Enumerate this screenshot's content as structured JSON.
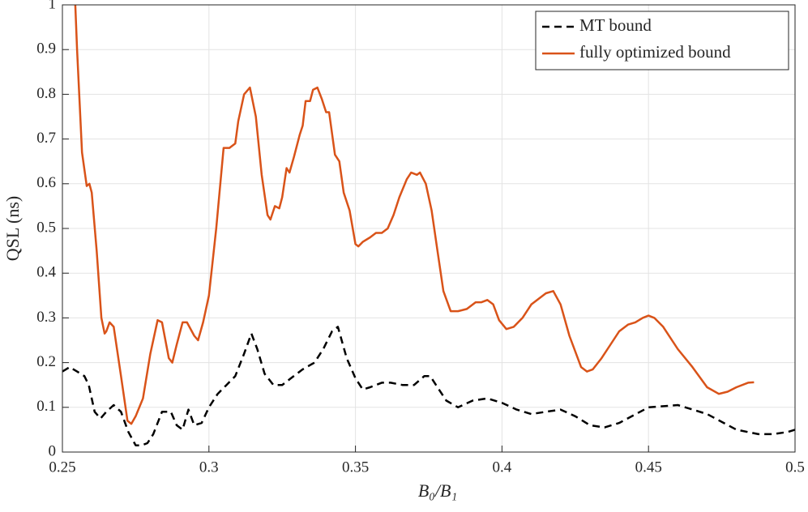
{
  "chart_data": {
    "type": "line",
    "xlabel": "B₀/B₁",
    "ylabel": "QSL (ns)",
    "xlim": [
      0.25,
      0.5
    ],
    "ylim": [
      0,
      1
    ],
    "xticks": [
      0.25,
      0.3,
      0.35,
      0.4,
      0.45,
      0.5
    ],
    "yticks": [
      0,
      0.1,
      0.2,
      0.3,
      0.4,
      0.5,
      0.6,
      0.7,
      0.8,
      0.9,
      1
    ],
    "grid": true,
    "legend": "upper right",
    "series": [
      {
        "name": "MT bound",
        "color": "#000000",
        "dashed": true,
        "x": [
          0.25,
          0.2525,
          0.255,
          0.2575,
          0.259,
          0.261,
          0.263,
          0.265,
          0.2675,
          0.27,
          0.2725,
          0.275,
          0.277,
          0.279,
          0.281,
          0.284,
          0.287,
          0.289,
          0.291,
          0.293,
          0.295,
          0.2975,
          0.3,
          0.303,
          0.306,
          0.309,
          0.312,
          0.3145,
          0.3165,
          0.319,
          0.322,
          0.325,
          0.328,
          0.332,
          0.336,
          0.339,
          0.342,
          0.344,
          0.347,
          0.35,
          0.3525,
          0.355,
          0.359,
          0.362,
          0.366,
          0.37,
          0.3735,
          0.3755,
          0.378,
          0.381,
          0.385,
          0.39,
          0.395,
          0.4,
          0.405,
          0.41,
          0.415,
          0.42,
          0.425,
          0.43,
          0.435,
          0.44,
          0.45,
          0.46,
          0.47,
          0.48,
          0.4875,
          0.4925,
          0.4975,
          0.5
        ],
        "values": [
          0.18,
          0.19,
          0.18,
          0.17,
          0.15,
          0.09,
          0.075,
          0.09,
          0.105,
          0.09,
          0.045,
          0.015,
          0.015,
          0.02,
          0.04,
          0.09,
          0.09,
          0.06,
          0.05,
          0.095,
          0.06,
          0.065,
          0.1,
          0.13,
          0.15,
          0.17,
          0.22,
          0.265,
          0.23,
          0.175,
          0.15,
          0.15,
          0.165,
          0.185,
          0.2,
          0.23,
          0.27,
          0.28,
          0.21,
          0.165,
          0.14,
          0.145,
          0.155,
          0.155,
          0.15,
          0.15,
          0.17,
          0.17,
          0.145,
          0.115,
          0.1,
          0.115,
          0.12,
          0.11,
          0.095,
          0.085,
          0.09,
          0.095,
          0.08,
          0.06,
          0.055,
          0.065,
          0.1,
          0.105,
          0.085,
          0.05,
          0.04,
          0.04,
          0.045,
          0.05
        ]
      },
      {
        "name": "fully optimized bound",
        "color": "#d95319",
        "dashed": false,
        "x": [
          0.2544,
          0.255,
          0.2567,
          0.2583,
          0.2592,
          0.26,
          0.2617,
          0.2633,
          0.2644,
          0.265,
          0.2661,
          0.2675,
          0.27,
          0.2722,
          0.2735,
          0.275,
          0.2775,
          0.28,
          0.2825,
          0.284,
          0.2863,
          0.2875,
          0.289,
          0.291,
          0.2925,
          0.295,
          0.2963,
          0.298,
          0.3,
          0.3025,
          0.305,
          0.307,
          0.309,
          0.31,
          0.312,
          0.314,
          0.316,
          0.318,
          0.32,
          0.321,
          0.3225,
          0.324,
          0.325,
          0.3265,
          0.3275,
          0.329,
          0.331,
          0.332,
          0.333,
          0.3345,
          0.3355,
          0.337,
          0.3385,
          0.34,
          0.341,
          0.343,
          0.3445,
          0.346,
          0.348,
          0.35,
          0.351,
          0.3525,
          0.355,
          0.357,
          0.359,
          0.361,
          0.363,
          0.365,
          0.3675,
          0.369,
          0.371,
          0.372,
          0.374,
          0.376,
          0.378,
          0.38,
          0.3825,
          0.385,
          0.388,
          0.391,
          0.393,
          0.395,
          0.397,
          0.399,
          0.4015,
          0.404,
          0.407,
          0.41,
          0.415,
          0.4175,
          0.42,
          0.423,
          0.427,
          0.429,
          0.431,
          0.434,
          0.437,
          0.44,
          0.443,
          0.4455,
          0.448,
          0.45,
          0.452,
          0.455,
          0.46,
          0.465,
          0.47,
          0.474,
          0.477,
          0.48,
          0.484,
          0.486
        ],
        "values": [
          1.0,
          0.9,
          0.67,
          0.595,
          0.6,
          0.58,
          0.45,
          0.3,
          0.265,
          0.27,
          0.29,
          0.28,
          0.17,
          0.07,
          0.063,
          0.08,
          0.12,
          0.22,
          0.295,
          0.29,
          0.21,
          0.2,
          0.24,
          0.29,
          0.29,
          0.26,
          0.25,
          0.29,
          0.35,
          0.5,
          0.68,
          0.68,
          0.69,
          0.74,
          0.8,
          0.815,
          0.75,
          0.62,
          0.53,
          0.52,
          0.55,
          0.545,
          0.57,
          0.635,
          0.625,
          0.66,
          0.71,
          0.73,
          0.785,
          0.785,
          0.81,
          0.815,
          0.79,
          0.76,
          0.76,
          0.665,
          0.65,
          0.58,
          0.54,
          0.465,
          0.46,
          0.47,
          0.48,
          0.49,
          0.49,
          0.5,
          0.53,
          0.57,
          0.61,
          0.625,
          0.62,
          0.625,
          0.6,
          0.54,
          0.45,
          0.36,
          0.315,
          0.315,
          0.32,
          0.335,
          0.335,
          0.34,
          0.33,
          0.295,
          0.275,
          0.28,
          0.3,
          0.33,
          0.355,
          0.36,
          0.33,
          0.26,
          0.19,
          0.18,
          0.185,
          0.21,
          0.24,
          0.27,
          0.285,
          0.29,
          0.3,
          0.305,
          0.3,
          0.28,
          0.23,
          0.19,
          0.145,
          0.13,
          0.135,
          0.145,
          0.155,
          0.156
        ]
      }
    ]
  }
}
